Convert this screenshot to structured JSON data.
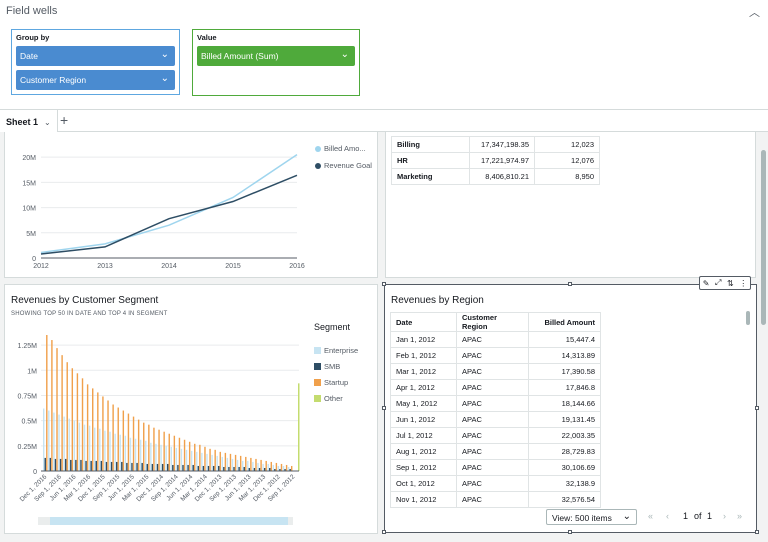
{
  "field_wells": {
    "title": "Field wells",
    "group_by_label": "Group by",
    "group_by_fields": [
      "Date",
      "Customer Region"
    ],
    "value_label": "Value",
    "value_fields": [
      "Billed Amount (Sum)"
    ]
  },
  "sheet_tab": {
    "label": "Sheet 1",
    "add": "+"
  },
  "line_chart": {
    "legend": [
      "Billed Amo...",
      "Revenue Goal"
    ],
    "colors": {
      "billed": "#9fd5ee",
      "goal": "#2e4e65"
    },
    "chart_data": {
      "type": "line",
      "x": [
        "2012",
        "2013",
        "2014",
        "2015",
        "2016"
      ],
      "series": [
        {
          "name": "Billed Amo...",
          "values": [
            1.1,
            2.8,
            6.5,
            12.0,
            20.5
          ]
        },
        {
          "name": "Revenue Goal",
          "values": [
            0.8,
            2.2,
            7.8,
            11.2,
            16.4
          ]
        }
      ],
      "yticks": [
        "0",
        "5M",
        "10M",
        "15M",
        "20M"
      ],
      "ylim": [
        0,
        23
      ]
    }
  },
  "dept_table": {
    "rows": [
      {
        "name": "Billing",
        "a": "17,347,198.35",
        "b": "12,023"
      },
      {
        "name": "HR",
        "a": "17,221,974.97",
        "b": "12,076"
      },
      {
        "name": "Marketing",
        "a": "8,406,810.21",
        "b": "8,950"
      }
    ]
  },
  "segment_chart": {
    "title": "Revenues by Customer Segment",
    "subtitle": "SHOWING TOP 50 IN DATE AND TOP 4 IN SEGMENT",
    "legend_title": "Segment",
    "legend": [
      {
        "name": "Enterprise",
        "color": "#c7e4f2"
      },
      {
        "name": "SMB",
        "color": "#2e4e65"
      },
      {
        "name": "Startup",
        "color": "#f0a04b"
      },
      {
        "name": "Other",
        "color": "#c4dc6f"
      }
    ],
    "yticks": [
      "0",
      "0.25M",
      "0.5M",
      "0.75M",
      "1M",
      "1.25M"
    ],
    "xticks": [
      "Dec 1, 2016",
      "Sep 1, 2016",
      "Jun 1, 2016",
      "Mar 1, 2016",
      "Dec 1, 2015",
      "Sep 1, 2015",
      "Jun 1, 2015",
      "Mar 1, 2015",
      "Dec 1, 2014",
      "Sep 1, 2014",
      "Jun 1, 2014",
      "Mar 1, 2014",
      "Dec 1, 2013",
      "Sep 1, 2013",
      "Jun 1, 2013",
      "Mar 1, 2013",
      "Dec 1, 2012",
      "Sep 1, 2012"
    ],
    "chart_data": {
      "type": "bar",
      "ylim": [
        0,
        1.35
      ],
      "startup": [
        1.35,
        1.3,
        1.22,
        1.15,
        1.08,
        1.02,
        0.97,
        0.92,
        0.86,
        0.82,
        0.78,
        0.74,
        0.7,
        0.66,
        0.63,
        0.6,
        0.57,
        0.54,
        0.51,
        0.48,
        0.46,
        0.43,
        0.41,
        0.39,
        0.37,
        0.35,
        0.33,
        0.31,
        0.29,
        0.27,
        0.26,
        0.24,
        0.22,
        0.21,
        0.19,
        0.18,
        0.17,
        0.16,
        0.15,
        0.14,
        0.13,
        0.12,
        0.11,
        0.1,
        0.09,
        0.08,
        0.07,
        0.06,
        0.05
      ],
      "enterprise": [
        0.62,
        0.6,
        0.58,
        0.56,
        0.54,
        0.52,
        0.5,
        0.48,
        0.46,
        0.45,
        0.43,
        0.42,
        0.4,
        0.39,
        0.37,
        0.36,
        0.35,
        0.33,
        0.32,
        0.31,
        0.3,
        0.28,
        0.27,
        0.26,
        0.25,
        0.24,
        0.23,
        0.22,
        0.21,
        0.2,
        0.19,
        0.18,
        0.17,
        0.16,
        0.15,
        0.14,
        0.13,
        0.12,
        0.11,
        0.1,
        0.1,
        0.09,
        0.08,
        0.07,
        0.07,
        0.06,
        0.05,
        0.05,
        0.04
      ],
      "smb": [
        0.13,
        0.13,
        0.12,
        0.12,
        0.12,
        0.11,
        0.11,
        0.11,
        0.1,
        0.1,
        0.1,
        0.1,
        0.09,
        0.09,
        0.09,
        0.09,
        0.08,
        0.08,
        0.08,
        0.08,
        0.07,
        0.07,
        0.07,
        0.07,
        0.07,
        0.06,
        0.06,
        0.06,
        0.06,
        0.06,
        0.05,
        0.05,
        0.05,
        0.05,
        0.05,
        0.04,
        0.04,
        0.04,
        0.04,
        0.04,
        0.03,
        0.03,
        0.03,
        0.03,
        0.03,
        0.02,
        0.02,
        0.02,
        0.02
      ],
      "other": 0.87
    }
  },
  "region_table": {
    "title": "Revenues by Region",
    "columns": [
      "Date",
      "Customer Region",
      "Billed Amount"
    ],
    "rows": [
      [
        "Jan 1, 2012",
        "APAC",
        "15,447.4"
      ],
      [
        "Feb 1, 2012",
        "APAC",
        "14,313.89"
      ],
      [
        "Mar 1, 2012",
        "APAC",
        "17,390.58"
      ],
      [
        "Apr 1, 2012",
        "APAC",
        "17,846.8"
      ],
      [
        "May 1, 2012",
        "APAC",
        "18,144.66"
      ],
      [
        "Jun 1, 2012",
        "APAC",
        "19,131.45"
      ],
      [
        "Jul 1, 2012",
        "APAC",
        "22,003.35"
      ],
      [
        "Aug 1, 2012",
        "APAC",
        "28,729.83"
      ],
      [
        "Sep 1, 2012",
        "APAC",
        "30,106.69"
      ],
      [
        "Oct 1, 2012",
        "APAC",
        "32,138.9"
      ],
      [
        "Nov 1, 2012",
        "APAC",
        "32,576.54"
      ]
    ],
    "view_select": "View: 500 items",
    "page": "1",
    "of_label": "of",
    "total_pages": "1"
  }
}
